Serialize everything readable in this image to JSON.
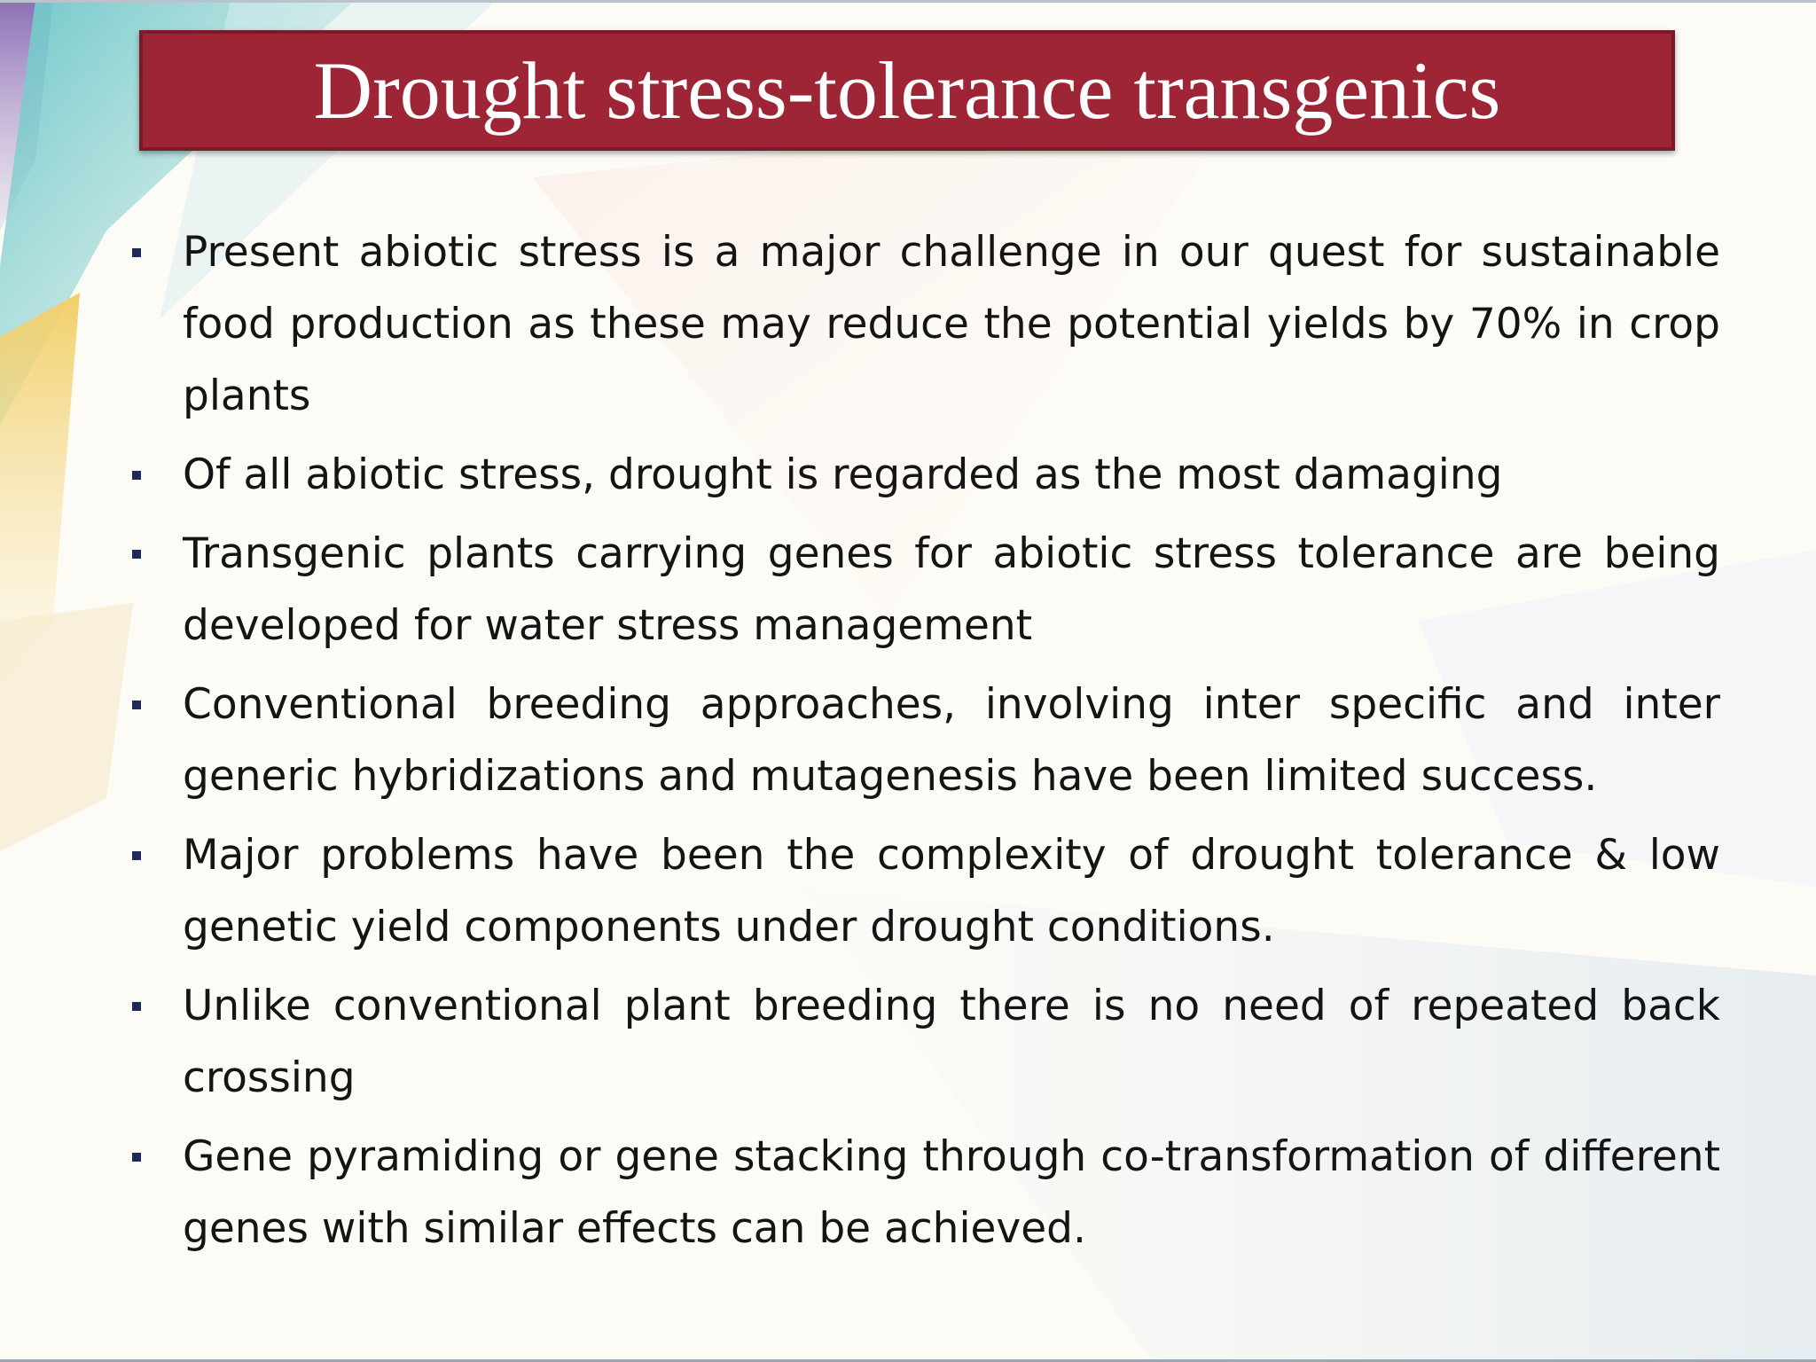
{
  "slide": {
    "title": "Drought stress-tolerance transgenics",
    "bullets": [
      "Present abiotic stress is a major challenge in our quest for sustainable food production as these may reduce the potential yields by 70% in crop plants",
      " Of all abiotic stress, drought is regarded as the most damaging",
      " Transgenic plants carrying genes for abiotic stress tolerance are being developed for water stress management",
      " Conventional breeding approaches, involving inter specific and inter generic hybridizations and mutagenesis have been limited success.",
      " Major problems have been the complexity of drought tolerance & low genetic yield components under drought conditions.",
      " Unlike conventional plant breeding there is no need of repeated back crossing",
      " Gene pyramiding or gene stacking through co-transformation of different genes with similar effects can be achieved."
    ]
  },
  "colors": {
    "title_bar": "#9e2536",
    "title_text": "#ffffff",
    "bullet_marker": "#1f2a5c",
    "body_text": "#141414"
  }
}
